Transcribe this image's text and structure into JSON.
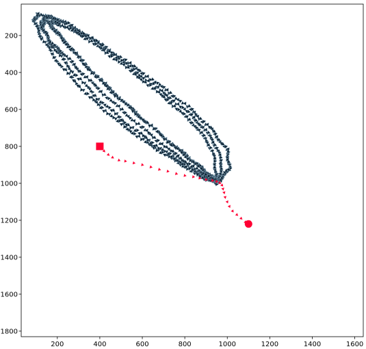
{
  "chart_data": {
    "type": "scatter",
    "title": "",
    "xlabel": "",
    "ylabel": "",
    "xlim": [
      30,
      1640
    ],
    "ylim": [
      1830,
      30
    ],
    "y_inverted": true,
    "grid": false,
    "legend": "none",
    "xticks": [
      200,
      400,
      600,
      800,
      1000,
      1200,
      1400,
      1600
    ],
    "yticks": [
      200,
      400,
      600,
      800,
      1000,
      1200,
      1400,
      1600,
      1800
    ],
    "spiral": {
      "marker": "triangle",
      "color": "#0d2233",
      "edgecolor": "#8fb3c7",
      "points": [
        [
          950,
          1000
        ],
        [
          870,
          960
        ],
        [
          760,
          880
        ],
        [
          620,
          780
        ],
        [
          480,
          660
        ],
        [
          350,
          530
        ],
        [
          220,
          370
        ],
        [
          130,
          220
        ],
        [
          90,
          120
        ],
        [
          110,
          85
        ],
        [
          200,
          110
        ],
        [
          340,
          200
        ],
        [
          500,
          320
        ],
        [
          660,
          450
        ],
        [
          810,
          580
        ],
        [
          920,
          700
        ],
        [
          1000,
          820
        ],
        [
          1010,
          920
        ],
        [
          960,
          990
        ],
        [
          900,
          975
        ],
        [
          800,
          900
        ],
        [
          670,
          800
        ],
        [
          530,
          680
        ],
        [
          390,
          540
        ],
        [
          260,
          380
        ],
        [
          160,
          230
        ],
        [
          120,
          130
        ],
        [
          150,
          100
        ],
        [
          240,
          130
        ],
        [
          380,
          230
        ],
        [
          540,
          370
        ],
        [
          700,
          510
        ],
        [
          840,
          640
        ],
        [
          930,
          760
        ],
        [
          975,
          880
        ],
        [
          960,
          985
        ],
        [
          910,
          950
        ],
        [
          820,
          860
        ],
        [
          700,
          750
        ],
        [
          570,
          620
        ],
        [
          440,
          480
        ],
        [
          310,
          330
        ],
        [
          210,
          200
        ],
        [
          160,
          130
        ],
        [
          190,
          130
        ],
        [
          290,
          180
        ],
        [
          430,
          290
        ],
        [
          590,
          430
        ],
        [
          740,
          570
        ],
        [
          860,
          700
        ],
        [
          930,
          820
        ],
        [
          950,
          950
        ],
        [
          935,
          980
        ],
        [
          880,
          920
        ],
        [
          780,
          830
        ],
        [
          650,
          700
        ],
        [
          510,
          560
        ],
        [
          370,
          410
        ],
        [
          250,
          250
        ],
        [
          180,
          160
        ],
        [
          140,
          110
        ],
        [
          130,
          160
        ],
        [
          170,
          240
        ],
        [
          230,
          300
        ],
        [
          330,
          420
        ],
        [
          460,
          560
        ],
        [
          600,
          700
        ],
        [
          740,
          830
        ],
        [
          860,
          930
        ],
        [
          945,
          985
        ]
      ]
    },
    "path": {
      "marker": "triangle",
      "color": "#ff0033",
      "points": [
        [
          400,
          800
        ],
        [
          420,
          825
        ],
        [
          440,
          845
        ],
        [
          460,
          860
        ],
        [
          490,
          875
        ],
        [
          520,
          880
        ],
        [
          560,
          890
        ],
        [
          600,
          900
        ],
        [
          640,
          912
        ],
        [
          680,
          925
        ],
        [
          720,
          935
        ],
        [
          760,
          948
        ],
        [
          800,
          958
        ],
        [
          840,
          965
        ],
        [
          870,
          972
        ],
        [
          900,
          980
        ],
        [
          930,
          985
        ],
        [
          950,
          990
        ],
        [
          965,
          998
        ],
        [
          975,
          1010
        ],
        [
          980,
          1030
        ],
        [
          985,
          1050
        ],
        [
          990,
          1075
        ],
        [
          1000,
          1100
        ],
        [
          1010,
          1125
        ],
        [
          1025,
          1150
        ],
        [
          1045,
          1170
        ],
        [
          1065,
          1190
        ],
        [
          1085,
          1210
        ],
        [
          1100,
          1220
        ]
      ],
      "start": {
        "x": 400,
        "y": 800,
        "marker": "square"
      },
      "end": {
        "x": 1100,
        "y": 1220,
        "marker": "circle"
      }
    }
  }
}
